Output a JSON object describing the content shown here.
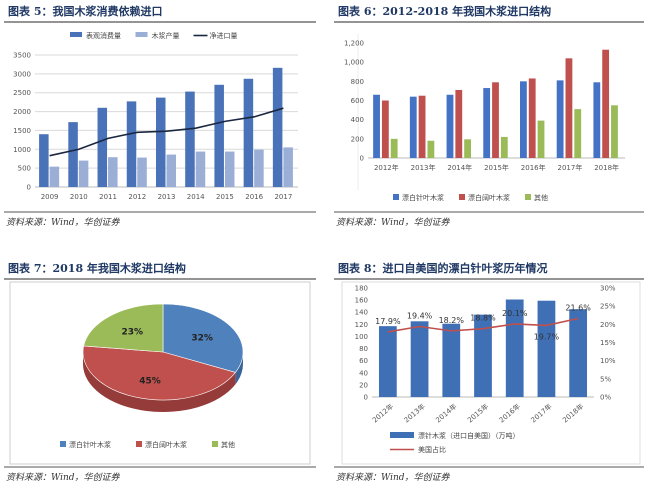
{
  "source": "资料来源：Wind，华创证券",
  "chart_data": [
    {
      "title": "图表 5：我国木浆消费依赖进口",
      "type": "bar",
      "categories": [
        "2009",
        "2010",
        "2011",
        "2012",
        "2013",
        "2014",
        "2015",
        "2016",
        "2017"
      ],
      "series": [
        {
          "name": "表观消费量",
          "kind": "bar",
          "color": "#4a72b8",
          "values": [
            1400,
            1720,
            2100,
            2270,
            2370,
            2530,
            2710,
            2870,
            3160
          ]
        },
        {
          "name": "木浆产量",
          "kind": "bar",
          "color": "#9aaed6",
          "values": [
            540,
            700,
            790,
            780,
            860,
            940,
            940,
            990,
            1050
          ]
        },
        {
          "name": "净进口量",
          "kind": "line",
          "color": "#1a2740",
          "values": [
            830,
            1000,
            1290,
            1450,
            1480,
            1560,
            1740,
            1860,
            2090
          ]
        }
      ],
      "ylim": [
        0,
        3500
      ],
      "yticks": [
        "0",
        "500",
        "1000",
        "1500",
        "2000",
        "2500",
        "3000",
        "3500"
      ],
      "grid": true,
      "legend": "top"
    },
    {
      "title": "图表 6：2012-2018 年我国木浆进口结构",
      "type": "bar",
      "categories": [
        "2012年",
        "2013年",
        "2014年",
        "2015年",
        "2016年",
        "2017年",
        "2018年"
      ],
      "series": [
        {
          "name": "漂白针叶木浆",
          "color": "#4472c4",
          "values": [
            660,
            640,
            660,
            730,
            800,
            810,
            790
          ]
        },
        {
          "name": "漂白阔叶木浆",
          "color": "#c0504d",
          "values": [
            600,
            650,
            710,
            790,
            830,
            1040,
            1130
          ]
        },
        {
          "name": "其他",
          "color": "#9bbb59",
          "values": [
            200,
            180,
            195,
            220,
            390,
            510,
            550
          ]
        }
      ],
      "ylim": [
        0,
        1200
      ],
      "yticks": [
        "0",
        "200",
        "400",
        "600",
        "800",
        "1,000",
        "1,200"
      ],
      "grid": false,
      "legend": "bottom"
    },
    {
      "title": "图表 7：2018 年我国木浆进口结构",
      "type": "pie",
      "slices": [
        {
          "name": "漂白针叶木浆",
          "value": 32,
          "label": "32%",
          "color": "#4f81bd"
        },
        {
          "name": "漂白阔叶木浆",
          "value": 45,
          "label": "45%",
          "color": "#c0504d"
        },
        {
          "name": "其他",
          "value": 23,
          "label": "23%",
          "color": "#9bbb59"
        }
      ],
      "legend": "bottom"
    },
    {
      "title": "图表 8：进口自美国的漂白针叶浆历年情况",
      "type": "bar",
      "categories": [
        "2012年",
        "2013年",
        "2014年",
        "2015年",
        "2016年",
        "2017年",
        "2018年"
      ],
      "series": [
        {
          "name": "漂针木浆（进口自美国）（万吨）",
          "kind": "bar",
          "axis": "left",
          "color": "#3f6fb5",
          "values": [
            117,
            125,
            121,
            136,
            161,
            159,
            145
          ]
        },
        {
          "name": "美国占比",
          "kind": "line",
          "axis": "right",
          "color": "#c0504d",
          "values": [
            17.9,
            19.4,
            18.2,
            18.8,
            20.1,
            19.7,
            21.6
          ],
          "labels": [
            "17.9%",
            "19.4%",
            "18.2%",
            "18.8%",
            "20.1%",
            "19.7%",
            "21.6%"
          ]
        }
      ],
      "ylim": [
        0,
        180
      ],
      "yticks": [
        "0",
        "20",
        "40",
        "60",
        "80",
        "100",
        "120",
        "140",
        "160",
        "180"
      ],
      "y2lim": [
        0,
        30
      ],
      "y2ticks": [
        "0%",
        "5%",
        "10%",
        "15%",
        "20%",
        "25%",
        "30%"
      ],
      "legend": "bottom"
    }
  ]
}
